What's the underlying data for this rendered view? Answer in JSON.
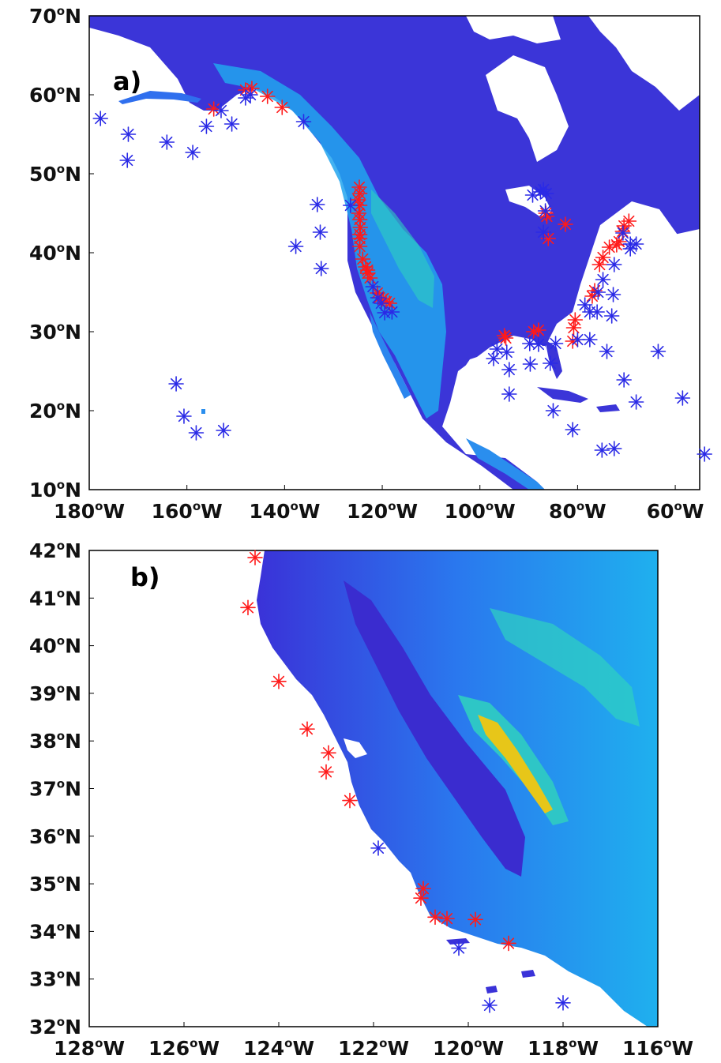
{
  "colors": {
    "land_low": "#3a2fd6",
    "land_mid": "#1aa0f0",
    "land_high": "#2fd2c0",
    "peak": "#e7c619",
    "ocean": "#ffffff",
    "marker_red": "#ff1a1a",
    "marker_blue": "#2a2ae6",
    "frame": "#000000"
  },
  "panels": {
    "a": {
      "label": "a)"
    },
    "b": {
      "label": "b)"
    }
  },
  "chart_data": [
    {
      "type": "scatter",
      "panel": "a",
      "lon_range": [
        -180,
        -55
      ],
      "lat_range": [
        10,
        70
      ],
      "x_ticks": [
        {
          "value": -180,
          "label": "180",
          "suffix": "W"
        },
        {
          "value": -160,
          "label": "160",
          "suffix": "W"
        },
        {
          "value": -140,
          "label": "140",
          "suffix": "W"
        },
        {
          "value": -120,
          "label": "120",
          "suffix": "W"
        },
        {
          "value": -100,
          "label": "100",
          "suffix": "W"
        },
        {
          "value": -80,
          "label": "80",
          "suffix": "W"
        },
        {
          "value": -60,
          "label": "60",
          "suffix": "W"
        }
      ],
      "y_ticks": [
        {
          "value": 10,
          "label": "10",
          "suffix": "N"
        },
        {
          "value": 20,
          "label": "20",
          "suffix": "N"
        },
        {
          "value": 30,
          "label": "30",
          "suffix": "N"
        },
        {
          "value": 40,
          "label": "40",
          "suffix": "N"
        },
        {
          "value": 50,
          "label": "50",
          "suffix": "N"
        },
        {
          "value": 60,
          "label": "60",
          "suffix": "N"
        },
        {
          "value": 70,
          "label": "70",
          "suffix": "N"
        }
      ],
      "series": [
        {
          "marker": "asterisk",
          "color": "red",
          "points": [
            [
              -154.5,
              58.2
            ],
            [
              -148.0,
              60.6
            ],
            [
              -146.7,
              60.8
            ],
            [
              -143.5,
              59.8
            ],
            [
              -140.5,
              58.4
            ],
            [
              -124.7,
              48.3
            ],
            [
              -124.6,
              47.5
            ],
            [
              -124.9,
              46.7
            ],
            [
              -124.6,
              46.0
            ],
            [
              -124.8,
              45.0
            ],
            [
              -124.6,
              44.2
            ],
            [
              -124.5,
              43.2
            ],
            [
              -124.6,
              42.3
            ],
            [
              -124.6,
              41.8
            ],
            [
              -124.6,
              40.8
            ],
            [
              -124.0,
              39.2
            ],
            [
              -123.4,
              38.2
            ],
            [
              -123.0,
              37.8
            ],
            [
              -123.0,
              37.4
            ],
            [
              -122.5,
              36.8
            ],
            [
              -121.0,
              34.9
            ],
            [
              -120.6,
              34.3
            ],
            [
              -119.8,
              34.2
            ],
            [
              -119.2,
              33.8
            ],
            [
              -118.5,
              33.6
            ],
            [
              -86.5,
              45.0
            ],
            [
              -86.3,
              44.6
            ],
            [
              -86.0,
              41.8
            ],
            [
              -82.5,
              43.6
            ],
            [
              -70.5,
              43.4
            ],
            [
              -70.8,
              42.7
            ],
            [
              -69.5,
              44.0
            ],
            [
              -71.5,
              41.4
            ],
            [
              -72.0,
              41.0
            ],
            [
              -73.5,
              40.7
            ],
            [
              -74.8,
              39.4
            ],
            [
              -75.5,
              38.5
            ],
            [
              -76.5,
              35.2
            ],
            [
              -77.0,
              34.5
            ],
            [
              -80.5,
              31.5
            ],
            [
              -80.8,
              30.5
            ],
            [
              -81.0,
              28.8
            ],
            [
              -95.0,
              29.5
            ],
            [
              -94.7,
              29.2
            ],
            [
              -89.0,
              30.0
            ],
            [
              -88.0,
              30.2
            ]
          ]
        },
        {
          "marker": "asterisk",
          "color": "blue",
          "points": [
            [
              -177.7,
              57.0
            ],
            [
              -172.0,
              55.0
            ],
            [
              -172.2,
              51.7
            ],
            [
              -164.1,
              54.0
            ],
            [
              -158.8,
              52.7
            ],
            [
              -156.0,
              56.0
            ],
            [
              -153.0,
              58.0
            ],
            [
              -150.8,
              56.3
            ],
            [
              -148.0,
              59.6
            ],
            [
              -147.0,
              60.0
            ],
            [
              -136.1,
              56.6
            ],
            [
              -137.7,
              40.8
            ],
            [
              -133.3,
              46.1
            ],
            [
              -132.7,
              42.6
            ],
            [
              -132.5,
              38.0
            ],
            [
              -126.5,
              46.0
            ],
            [
              -121.9,
              35.7
            ],
            [
              -120.9,
              34.3
            ],
            [
              -120.2,
              33.6
            ],
            [
              -119.5,
              32.4
            ],
            [
              -118.0,
              32.5
            ],
            [
              -162.2,
              23.4
            ],
            [
              -160.6,
              19.3
            ],
            [
              -158.1,
              17.2
            ],
            [
              -152.5,
              17.5
            ],
            [
              -89.2,
              47.3
            ],
            [
              -87.6,
              47.7
            ],
            [
              -87.0,
              48.0
            ],
            [
              -86.4,
              47.5
            ],
            [
              -86.6,
              45.3
            ],
            [
              -87.0,
              42.6
            ],
            [
              -70.7,
              42.5
            ],
            [
              -69.2,
              40.5
            ],
            [
              -69.2,
              41.1
            ],
            [
              -68.0,
              41.1
            ],
            [
              -72.5,
              38.5
            ],
            [
              -74.8,
              36.6
            ],
            [
              -75.8,
              35.0
            ],
            [
              -72.7,
              34.7
            ],
            [
              -78.5,
              33.4
            ],
            [
              -77.5,
              32.5
            ],
            [
              -76.0,
              32.5
            ],
            [
              -73.0,
              32.0
            ],
            [
              -80.0,
              29.0
            ],
            [
              -77.5,
              29.0
            ],
            [
              -89.8,
              28.5
            ],
            [
              -88.0,
              28.4
            ],
            [
              -84.5,
              28.5
            ],
            [
              -94.5,
              27.4
            ],
            [
              -96.5,
              27.8
            ],
            [
              -97.2,
              26.6
            ],
            [
              -94.0,
              25.2
            ],
            [
              -89.7,
              25.9
            ],
            [
              -85.6,
              26.0
            ],
            [
              -94.0,
              22.1
            ],
            [
              -85.0,
              20.0
            ],
            [
              -81.0,
              17.6
            ],
            [
              -75.0,
              15.0
            ],
            [
              -72.5,
              15.2
            ],
            [
              -74.0,
              27.5
            ],
            [
              -70.5,
              23.9
            ],
            [
              -68.0,
              21.1
            ],
            [
              -63.5,
              27.5
            ],
            [
              -58.5,
              21.6
            ],
            [
              -54.0,
              14.5
            ]
          ]
        }
      ]
    },
    {
      "type": "scatter",
      "panel": "b",
      "lon_range": [
        -128,
        -116
      ],
      "lat_range": [
        32,
        42
      ],
      "x_ticks": [
        {
          "value": -128,
          "label": "128",
          "suffix": "W"
        },
        {
          "value": -126,
          "label": "126",
          "suffix": "W"
        },
        {
          "value": -124,
          "label": "124",
          "suffix": "W"
        },
        {
          "value": -122,
          "label": "122",
          "suffix": "W"
        },
        {
          "value": -120,
          "label": "120",
          "suffix": "W"
        },
        {
          "value": -118,
          "label": "118",
          "suffix": "W"
        },
        {
          "value": -116,
          "label": "116",
          "suffix": "W"
        }
      ],
      "y_ticks": [
        {
          "value": 32,
          "label": "32",
          "suffix": "N"
        },
        {
          "value": 33,
          "label": "33",
          "suffix": "N"
        },
        {
          "value": 34,
          "label": "34",
          "suffix": "N"
        },
        {
          "value": 35,
          "label": "35",
          "suffix": "N"
        },
        {
          "value": 36,
          "label": "36",
          "suffix": "N"
        },
        {
          "value": 37,
          "label": "37",
          "suffix": "N"
        },
        {
          "value": 38,
          "label": "38",
          "suffix": "N"
        },
        {
          "value": 39,
          "label": "39",
          "suffix": "N"
        },
        {
          "value": 40,
          "label": "40",
          "suffix": "N"
        },
        {
          "value": 41,
          "label": "41",
          "suffix": "N"
        },
        {
          "value": 42,
          "label": "42",
          "suffix": "N"
        }
      ],
      "series": [
        {
          "marker": "asterisk",
          "color": "red",
          "points": [
            [
              -124.5,
              41.85
            ],
            [
              -124.65,
              40.8
            ],
            [
              -124.0,
              39.25
            ],
            [
              -123.4,
              38.25
            ],
            [
              -122.95,
              37.75
            ],
            [
              -123.0,
              37.35
            ],
            [
              -122.5,
              36.75
            ],
            [
              -120.95,
              34.9
            ],
            [
              -121.0,
              34.7
            ],
            [
              -120.7,
              34.3
            ],
            [
              -120.45,
              34.27
            ],
            [
              -119.85,
              34.25
            ],
            [
              -119.15,
              33.75
            ]
          ]
        },
        {
          "marker": "asterisk",
          "color": "blue",
          "points": [
            [
              -121.9,
              35.75
            ],
            [
              -120.2,
              33.65
            ],
            [
              -119.55,
              32.45
            ],
            [
              -118.0,
              32.5
            ]
          ]
        }
      ]
    }
  ]
}
